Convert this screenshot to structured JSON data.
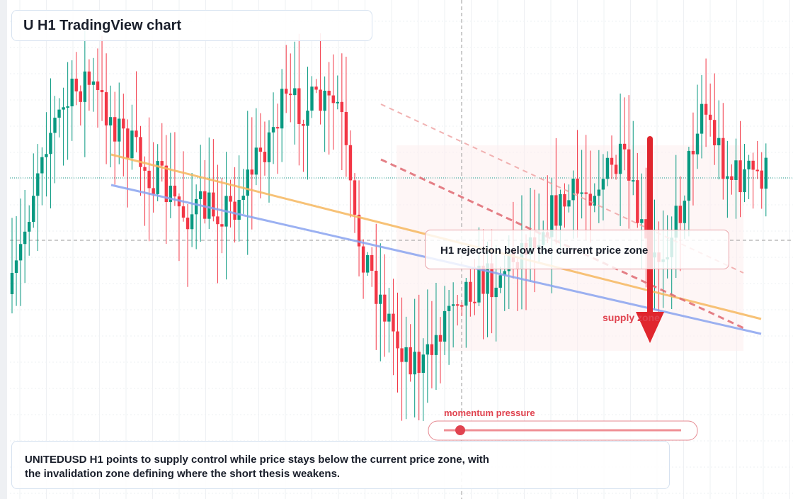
{
  "header": {
    "title": "U H1 TradingView chart"
  },
  "annotations": {
    "rejection": "H1 rejection below the current price zone",
    "supply": "supply zone",
    "momentum": "momentum pressure"
  },
  "summary": "UNITEDUSD H1 points to supply control while price stays below the current price zone, with the invalidation zone defining where the short thesis weakens."
}
